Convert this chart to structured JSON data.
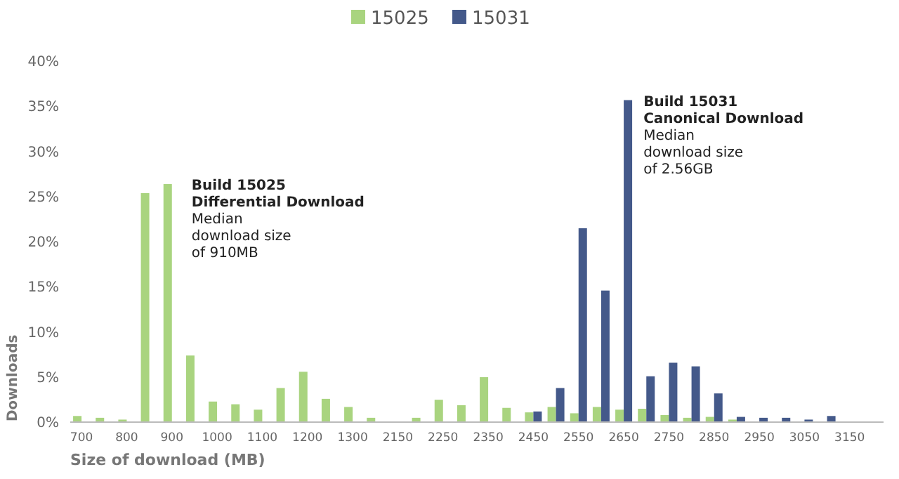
{
  "chart_data": {
    "type": "bar",
    "xlabel": "Size of download (MB)",
    "ylabel": "Downloads",
    "categories": [
      "700",
      null,
      "800",
      null,
      "900",
      null,
      "1000",
      null,
      "1100",
      null,
      "1200",
      null,
      "1300",
      null,
      "2150",
      null,
      "2250",
      null,
      "2350",
      null,
      "2450",
      null,
      "2550",
      null,
      "2650",
      null,
      "2750",
      null,
      "2850",
      null,
      "2950",
      null,
      "3050",
      null,
      "3150",
      null
    ],
    "series": [
      {
        "name": "15025",
        "color": "#a9d47f",
        "values": [
          0.6,
          0.4,
          0.2,
          25.3,
          26.3,
          7.3,
          2.2,
          1.9,
          1.3,
          3.7,
          5.5,
          2.5,
          1.6,
          0.4,
          0,
          0.4,
          2.4,
          1.8,
          4.9,
          1.5,
          1.0,
          1.6,
          0.9,
          1.6,
          1.3,
          1.4,
          0.7,
          0.4,
          0.5,
          0.2,
          null,
          null,
          null,
          null,
          null,
          null
        ]
      },
      {
        "name": "15031",
        "color": "#44598a",
        "values": [
          null,
          null,
          null,
          null,
          null,
          null,
          null,
          null,
          null,
          null,
          null,
          null,
          null,
          null,
          null,
          null,
          null,
          null,
          null,
          null,
          1.1,
          3.7,
          21.4,
          14.5,
          35.6,
          5.0,
          6.5,
          6.1,
          3.1,
          0.5,
          0.4,
          0.4,
          0.2,
          0.6,
          null,
          null
        ]
      }
    ],
    "ylim": [
      0,
      40
    ],
    "yticks": [
      {
        "value": 0,
        "label": "0%"
      },
      {
        "value": 5,
        "label": "5%"
      },
      {
        "value": 10,
        "label": "10%"
      },
      {
        "value": 15,
        "label": "15%"
      },
      {
        "value": 20,
        "label": "20%"
      },
      {
        "value": 25,
        "label": "25%"
      },
      {
        "value": 30,
        "label": "30%"
      },
      {
        "value": 35,
        "label": "35%"
      },
      {
        "value": 40,
        "label": "40%"
      }
    ],
    "grid": false,
    "legend": "top",
    "annotations": [
      {
        "text": "Build 15025\nDifferential Download",
        "x": "900",
        "y": 26.3
      },
      {
        "text": "Median\ndownload size\nof 910MB",
        "x": "900",
        "y": 26.3
      },
      {
        "text": "Build 15031\nCanonical Download",
        "x": "2650",
        "y": 35.6
      },
      {
        "text": "Median\ndownload size\nof 2.56GB",
        "x": "2650",
        "y": 35.6
      }
    ]
  }
}
